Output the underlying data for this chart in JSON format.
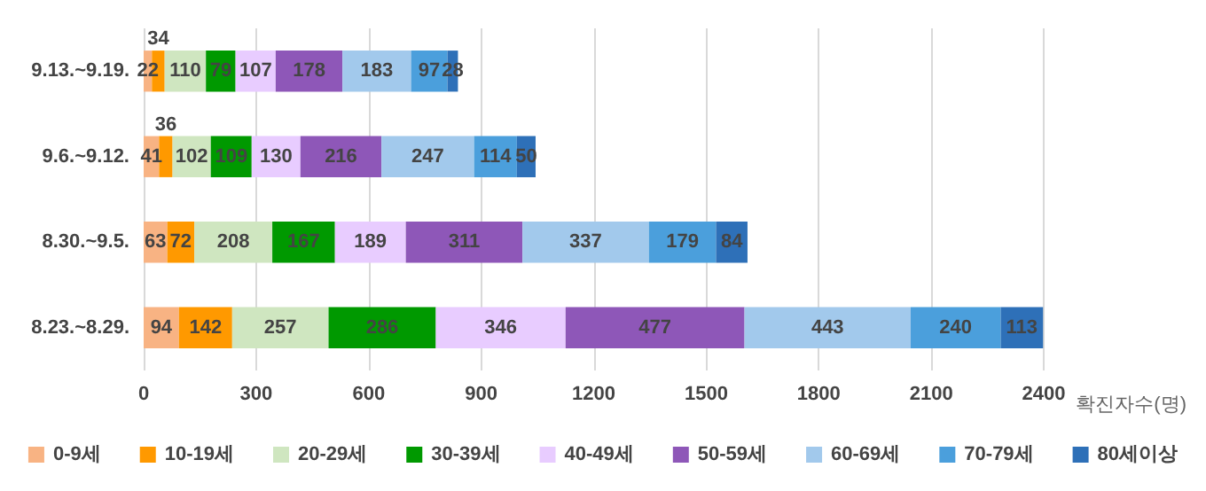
{
  "chart_data": {
    "type": "bar",
    "orientation": "horizontal",
    "stacked": true,
    "xlabel": "확진자수(명)",
    "categories": [
      "9.13.~9.19.",
      "9.6.~9.12.",
      "8.30.~9.5.",
      "8.23.~8.29."
    ],
    "series": [
      {
        "name": "0-9세",
        "color": "#f8b383",
        "values": [
          22,
          41,
          63,
          94
        ]
      },
      {
        "name": "10-19세",
        "color": "#ff9900",
        "values": [
          34,
          36,
          72,
          142
        ]
      },
      {
        "name": "20-29세",
        "color": "#cfe6c0",
        "values": [
          110,
          102,
          208,
          257
        ]
      },
      {
        "name": "30-39세",
        "color": "#009900",
        "values": [
          79,
          109,
          167,
          286
        ]
      },
      {
        "name": "40-49세",
        "color": "#e8ccff",
        "values": [
          107,
          130,
          189,
          346
        ]
      },
      {
        "name": "50-59세",
        "color": "#8e57b8",
        "values": [
          178,
          216,
          311,
          477
        ]
      },
      {
        "name": "60-69세",
        "color": "#a2c9ec",
        "values": [
          183,
          247,
          337,
          443
        ]
      },
      {
        "name": "70-79세",
        "color": "#4b9fdc",
        "values": [
          97,
          114,
          179,
          240
        ]
      },
      {
        "name": "80세이상",
        "color": "#2e70b8",
        "values": [
          28,
          50,
          84,
          113
        ]
      }
    ],
    "xlim": [
      0,
      2400
    ],
    "xticks": [
      0,
      300,
      600,
      900,
      1200,
      1500,
      1800,
      2100,
      2400
    ],
    "grid": "x",
    "legend": "bottom",
    "data_labels": true
  }
}
